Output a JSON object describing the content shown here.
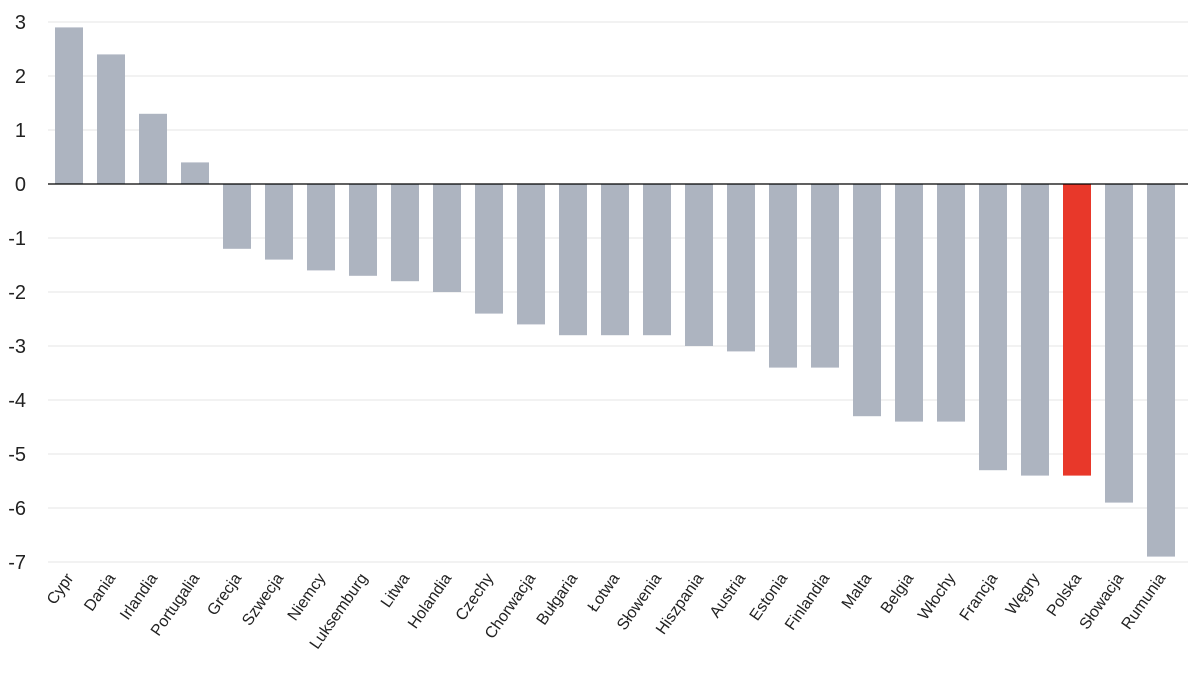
{
  "chart_data": {
    "type": "bar",
    "title": "",
    "xlabel": "",
    "ylabel": "",
    "ylim": [
      -7,
      3
    ],
    "yticks": [
      3,
      2,
      1,
      0,
      -1,
      -2,
      -3,
      -4,
      -5,
      -6,
      -7
    ],
    "ytick_labels": [
      "3",
      "2",
      "1",
      "0",
      "-1",
      "-2",
      "-3",
      "-4",
      "-5",
      "-6",
      "-7"
    ],
    "grid": true,
    "legend": "none",
    "default_color": "#adb4c0",
    "highlight_color": "#e8382a",
    "highlight_category": "Polska",
    "categories": [
      "Cypr",
      "Dania",
      "Irlandia",
      "Portugalia",
      "Grecja",
      "Szwecja",
      "Niemcy",
      "Luksemburg",
      "Litwa",
      "Holandia",
      "Czechy",
      "Chorwacja",
      "Bułgaria",
      "Łotwa",
      "Słowenia",
      "Hiszpania",
      "Austria",
      "Estonia",
      "Finlandia",
      "Malta",
      "Belgia",
      "Włochy",
      "Francja",
      "Węgry",
      "Polska",
      "Słowacja",
      "Rumunia"
    ],
    "values": [
      2.9,
      2.4,
      1.3,
      0.4,
      -1.2,
      -1.4,
      -1.6,
      -1.7,
      -1.8,
      -2.0,
      -2.4,
      -2.6,
      -2.8,
      -2.8,
      -2.8,
      -3.0,
      -3.1,
      -3.4,
      -3.4,
      -4.3,
      -4.4,
      -4.4,
      -5.3,
      -5.4,
      -5.4,
      -5.9,
      -6.9
    ]
  }
}
